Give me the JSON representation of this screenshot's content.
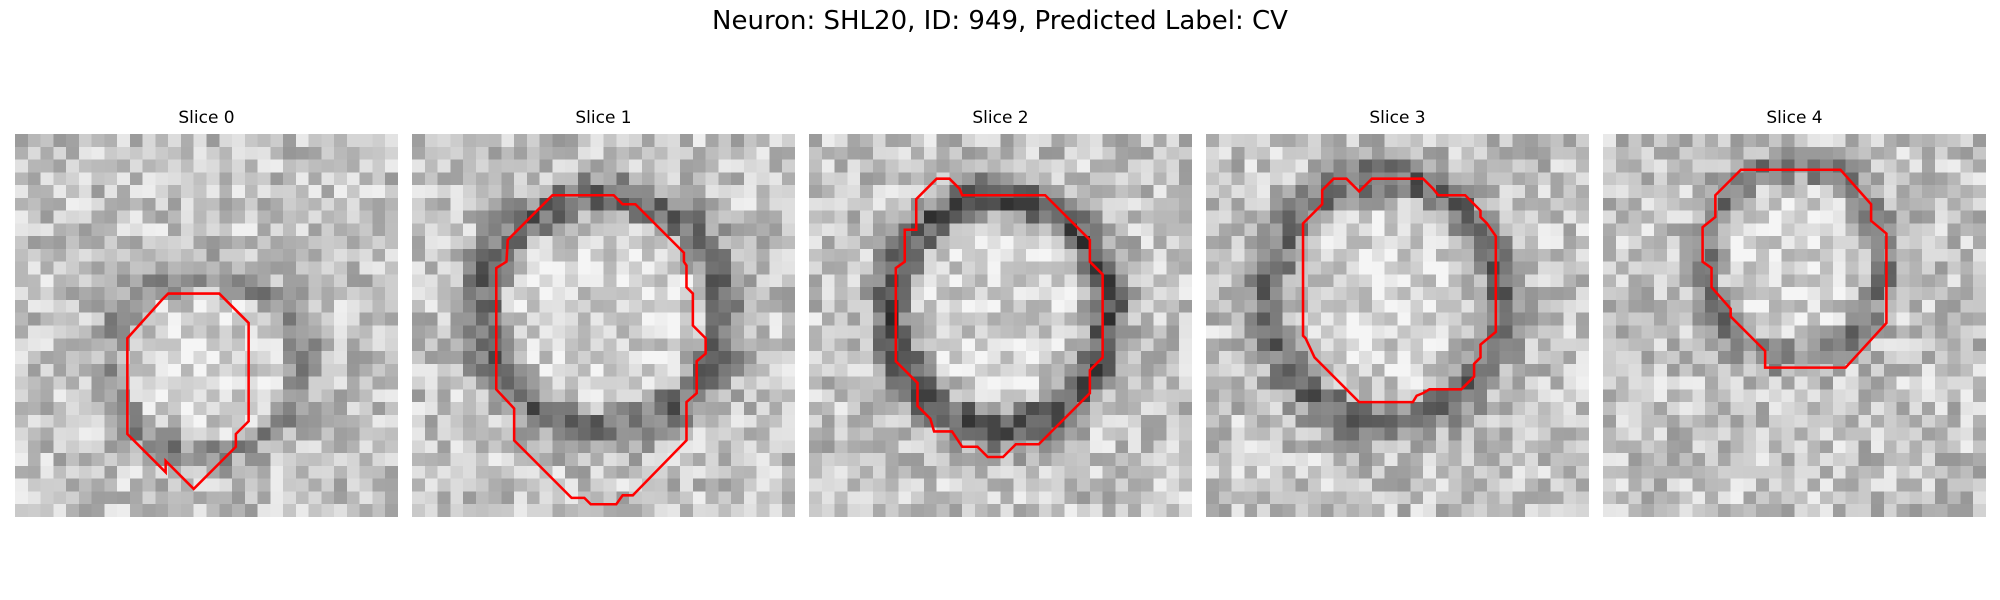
{
  "figure": {
    "title": "Neuron: SHL20, ID: 949, Predicted Label: CV"
  },
  "panels": [
    {
      "title": "Slice 0"
    },
    {
      "title": "Slice 1"
    },
    {
      "title": "Slice 2"
    },
    {
      "title": "Slice 3"
    },
    {
      "title": "Slice 4"
    }
  ],
  "colors": {
    "contour": "#ff0000",
    "background": "#ffffff"
  }
}
